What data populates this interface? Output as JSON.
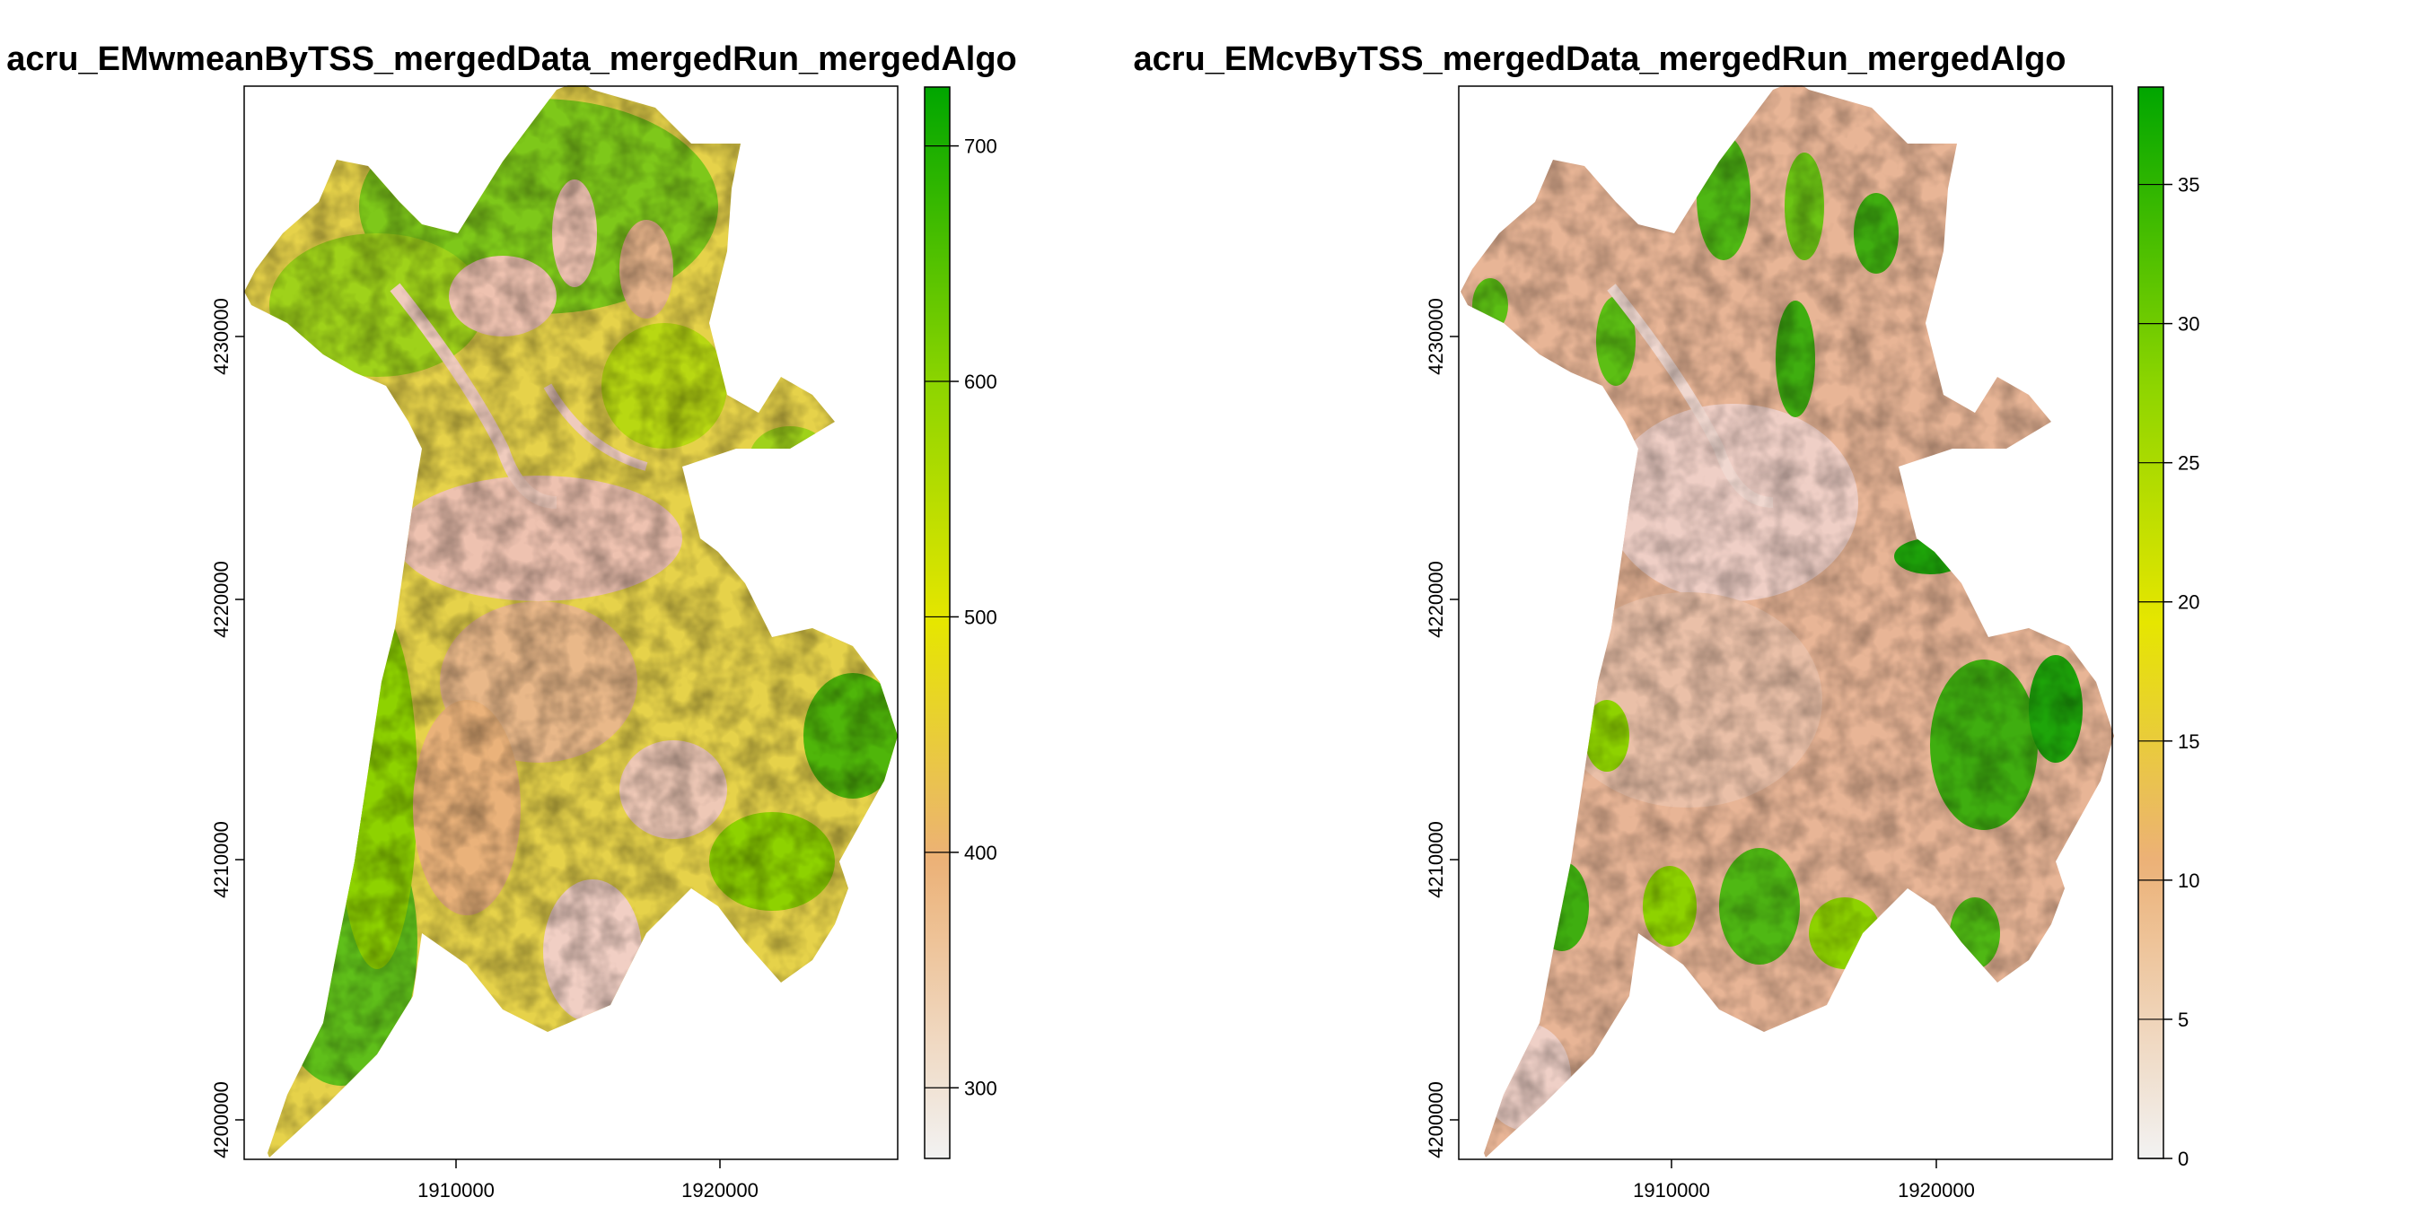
{
  "panels": [
    {
      "title": "acru_EMwmeanByTSS_mergedData_mergedRun_mergedAlgo",
      "x_ticks": [
        "1910000",
        "1920000"
      ],
      "y_ticks": [
        "4200000",
        "4210000",
        "4220000",
        "4230000"
      ],
      "legend": {
        "min": 270,
        "max": 725,
        "ticks": [
          "300",
          "400",
          "500",
          "600",
          "700"
        ],
        "tick_values": [
          300,
          400,
          500,
          600,
          700
        ],
        "colors": [
          "#f2f2f2",
          "#ecb176",
          "#e6e600",
          "#8ed500",
          "#00a600"
        ]
      },
      "dominant": "mean"
    },
    {
      "title": "acru_EMcvByTSS_mergedData_mergedRun_mergedAlgo",
      "x_ticks": [
        "1910000",
        "1920000"
      ],
      "y_ticks": [
        "4200000",
        "4210000",
        "4220000",
        "4230000"
      ],
      "legend": {
        "min": 0,
        "max": 38.5,
        "ticks": [
          "0",
          "5",
          "10",
          "15",
          "20",
          "25",
          "30",
          "35"
        ],
        "tick_values": [
          0,
          5,
          10,
          15,
          20,
          25,
          30,
          35
        ],
        "colors": [
          "#f2f2f2",
          "#ecb176",
          "#e6e600",
          "#8ed500",
          "#00a600"
        ]
      },
      "dominant": "cv"
    }
  ]
}
